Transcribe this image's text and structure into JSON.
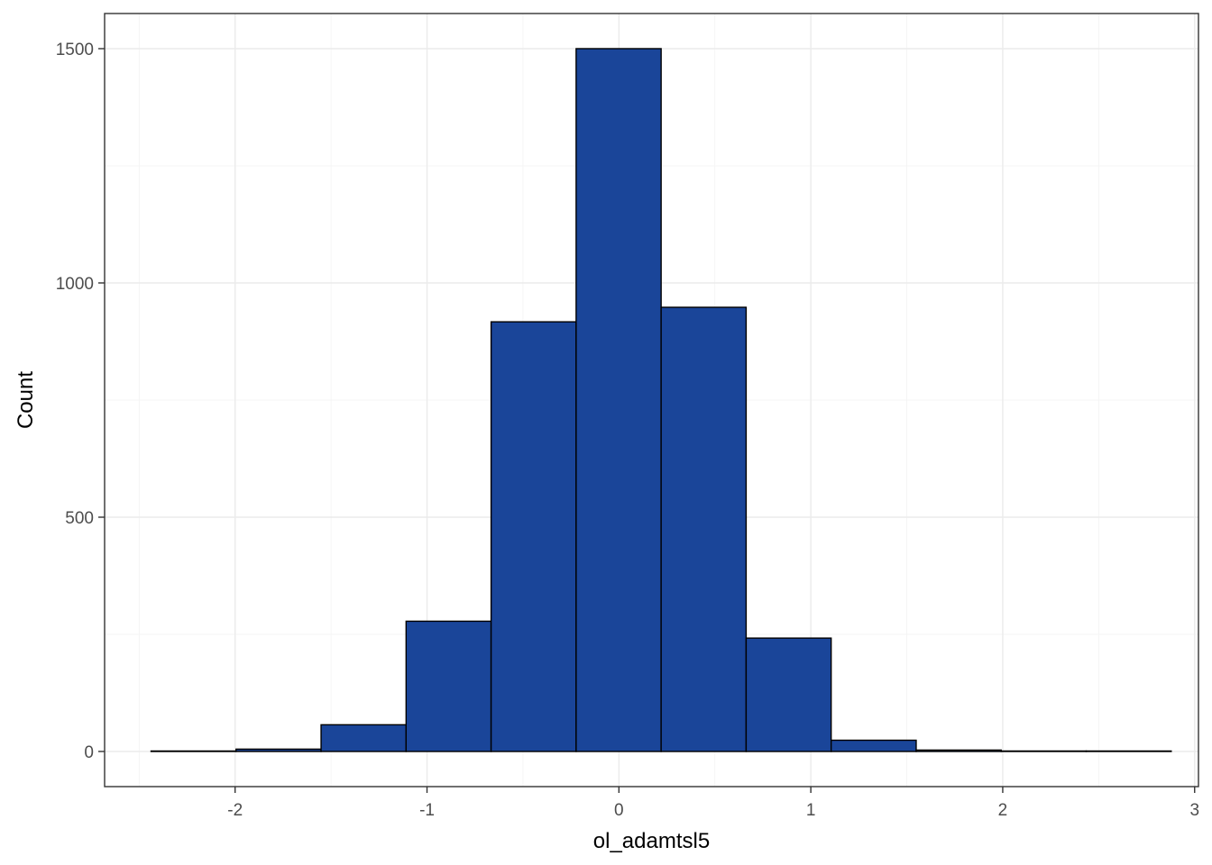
{
  "chart_data": {
    "type": "bar",
    "subtype": "histogram",
    "xlabel": "ol_adamtsl5",
    "ylabel": "Count",
    "xlim": [
      -2.68,
      3.02
    ],
    "ylim": [
      -75,
      1575
    ],
    "x_ticks": [
      -2,
      -1,
      0,
      1,
      2,
      3
    ],
    "y_ticks": [
      0,
      500,
      1000,
      1500
    ],
    "grid": true,
    "bins": [
      {
        "x0": -2.438,
        "x1": -1.995,
        "count": 1
      },
      {
        "x0": -1.995,
        "x1": -1.552,
        "count": 5
      },
      {
        "x0": -1.552,
        "x1": -1.109,
        "count": 57
      },
      {
        "x0": -1.109,
        "x1": -0.666,
        "count": 278
      },
      {
        "x0": -0.666,
        "x1": -0.223,
        "count": 917
      },
      {
        "x0": -0.223,
        "x1": 0.22,
        "count": 1500
      },
      {
        "x0": 0.22,
        "x1": 0.663,
        "count": 948
      },
      {
        "x0": 0.663,
        "x1": 1.106,
        "count": 242
      },
      {
        "x0": 1.106,
        "x1": 1.549,
        "count": 24
      },
      {
        "x0": 1.549,
        "x1": 1.992,
        "count": 3
      },
      {
        "x0": 1.992,
        "x1": 2.435,
        "count": 1
      },
      {
        "x0": 2.435,
        "x1": 2.878,
        "count": 1
      }
    ],
    "colors": {
      "bar_fill": "#1A4599",
      "bar_outline": "#000000",
      "panel_border": "#333333",
      "grid": "#EBEBEB",
      "tick_text": "#4D4D4D"
    }
  }
}
